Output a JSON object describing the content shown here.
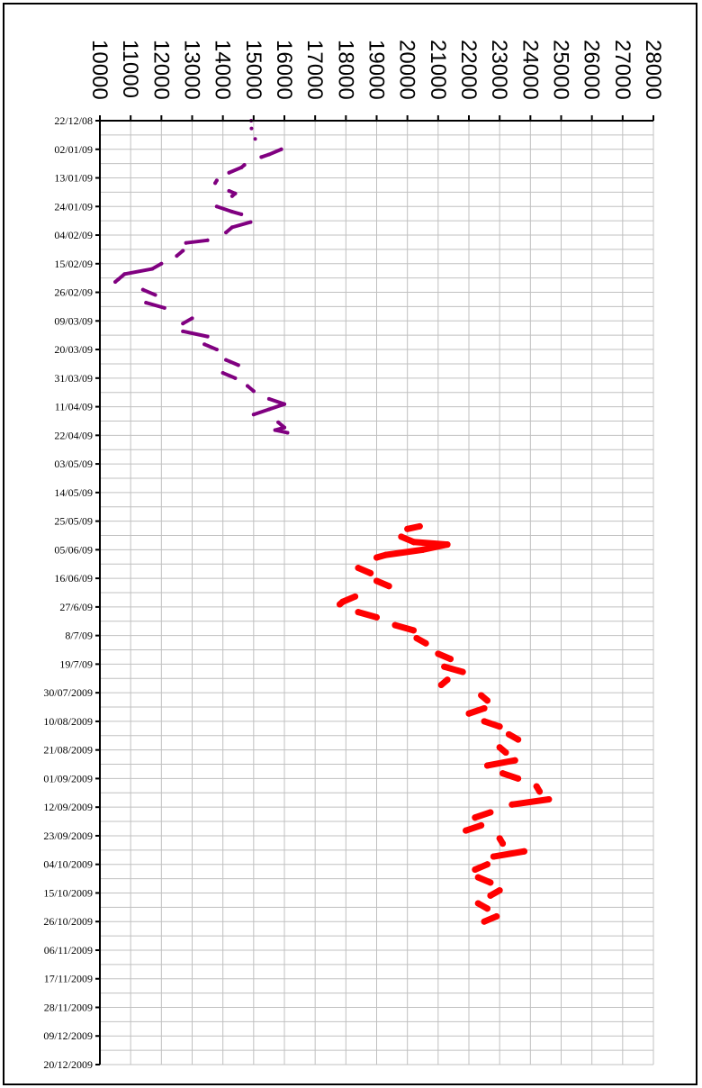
{
  "chart_data": {
    "type": "line",
    "orientation": "vertical-time-axis",
    "title": "",
    "xlabel": "",
    "ylabel": "",
    "xlim": [
      10000,
      28000
    ],
    "x_ticks": [
      10000,
      11000,
      12000,
      13000,
      14000,
      15000,
      16000,
      17000,
      18000,
      19000,
      20000,
      21000,
      22000,
      23000,
      24000,
      25000,
      26000,
      27000,
      28000
    ],
    "x_tick_labels": [
      "10000",
      "11000",
      "12000",
      "13000",
      "14000",
      "15000",
      "16000",
      "17000",
      "18000",
      "19000",
      "20000",
      "21000",
      "22000",
      "23000",
      "24000",
      "25000",
      "26000",
      "27000",
      "28000"
    ],
    "y_tick_labels": [
      "22/12/08",
      "02/01/09",
      "13/01/09",
      "24/01/09",
      "04/02/09",
      "15/02/09",
      "26/02/09",
      "09/03/09",
      "20/03/09",
      "31/03/09",
      "11/04/09",
      "22/04/09",
      "03/05/09",
      "14/05/09",
      "25/05/09",
      "05/06/09",
      "16/06/09",
      "27/6/09",
      "8/7/09",
      "19/7/09",
      "30/07/2009",
      "10/08/2009",
      "21/08/2009",
      "01/09/2009",
      "12/09/2009",
      "23/09/2009",
      "04/10/2009",
      "15/10/2009",
      "26/10/2009",
      "06/11/2009",
      "17/11/2009",
      "28/11/2009",
      "09/12/2009",
      "20/12/2009"
    ],
    "y_range_days": [
      0,
      363
    ],
    "grid": true,
    "legend": "none",
    "colors": {
      "series_1": "#800080",
      "series_2": "#ff0000",
      "axis": "#000000",
      "grid": "#c0c0c0"
    },
    "series": [
      {
        "color": "#800080",
        "stroke": "thin",
        "points": [
          [
            0,
            14920
          ],
          [
            3,
            14930
          ],
          [
            7,
            15050
          ],
          [
            11,
            15900
          ],
          [
            13,
            15500
          ],
          [
            14,
            15250
          ],
          [
            17,
            14700
          ],
          [
            18,
            14600
          ],
          [
            20,
            14200
          ],
          [
            23,
            13800
          ],
          [
            24,
            13750
          ],
          [
            27,
            14200
          ],
          [
            28,
            14400
          ],
          [
            29,
            14300
          ],
          [
            33,
            13800
          ],
          [
            35,
            14300
          ],
          [
            36,
            14600
          ],
          [
            39,
            14900
          ],
          [
            41,
            14300
          ],
          [
            43,
            14100
          ],
          [
            46,
            13500
          ],
          [
            47,
            12800
          ],
          [
            50,
            12700
          ],
          [
            52,
            12500
          ],
          [
            55,
            12000
          ],
          [
            57,
            11700
          ],
          [
            59,
            10800
          ],
          [
            61,
            10600
          ],
          [
            62,
            10500
          ],
          [
            65,
            11400
          ],
          [
            67,
            11800
          ],
          [
            70,
            11500
          ],
          [
            72,
            12100
          ],
          [
            76,
            13000
          ],
          [
            78,
            12700
          ],
          [
            81,
            12700
          ],
          [
            83,
            13500
          ],
          [
            86,
            13400
          ],
          [
            88,
            13800
          ],
          [
            92,
            14100
          ],
          [
            94,
            14500
          ],
          [
            97,
            14000
          ],
          [
            99,
            14400
          ],
          [
            102,
            14800
          ],
          [
            104,
            15000
          ],
          [
            107,
            15500
          ],
          [
            109,
            16000
          ],
          [
            111,
            15500
          ],
          [
            113,
            15000
          ],
          [
            116,
            15800
          ],
          [
            118,
            16000
          ],
          [
            119,
            15700
          ],
          [
            120,
            16100
          ]
        ]
      },
      {
        "color": "#ff0000",
        "stroke": "thick",
        "points": [
          [
            156,
            20400
          ],
          [
            157,
            20000
          ],
          [
            160,
            19800
          ],
          [
            162,
            20200
          ],
          [
            163,
            21300
          ],
          [
            165,
            20500
          ],
          [
            167,
            19300
          ],
          [
            168,
            19000
          ],
          [
            172,
            18400
          ],
          [
            174,
            18800
          ],
          [
            177,
            19000
          ],
          [
            179,
            19400
          ],
          [
            183,
            18300
          ],
          [
            185,
            17900
          ],
          [
            186,
            17800
          ],
          [
            189,
            18400
          ],
          [
            191,
            19000
          ],
          [
            194,
            19600
          ],
          [
            196,
            20200
          ],
          [
            199,
            20300
          ],
          [
            201,
            20600
          ],
          [
            205,
            21000
          ],
          [
            207,
            21400
          ],
          [
            210,
            21200
          ],
          [
            212,
            21800
          ],
          [
            215,
            21300
          ],
          [
            217,
            21100
          ],
          [
            221,
            22400
          ],
          [
            223,
            22600
          ],
          [
            226,
            22500
          ],
          [
            228,
            22000
          ],
          [
            231,
            22500
          ],
          [
            233,
            23000
          ],
          [
            236,
            23300
          ],
          [
            238,
            23600
          ],
          [
            241,
            23000
          ],
          [
            243,
            23200
          ],
          [
            246,
            23500
          ],
          [
            248,
            22600
          ],
          [
            251,
            23100
          ],
          [
            253,
            23600
          ],
          [
            256,
            24200
          ],
          [
            258,
            24300
          ],
          [
            261,
            24600
          ],
          [
            263,
            23400
          ],
          [
            266,
            22700
          ],
          [
            268,
            22200
          ],
          [
            271,
            22400
          ],
          [
            273,
            21900
          ],
          [
            276,
            23000
          ],
          [
            278,
            23100
          ],
          [
            281,
            23800
          ],
          [
            283,
            22800
          ],
          [
            286,
            22600
          ],
          [
            288,
            22200
          ],
          [
            291,
            22300
          ],
          [
            293,
            22700
          ],
          [
            296,
            23000
          ],
          [
            298,
            22700
          ],
          [
            301,
            22300
          ],
          [
            303,
            22600
          ],
          [
            306,
            22900
          ],
          [
            308,
            22500
          ]
        ]
      }
    ]
  }
}
